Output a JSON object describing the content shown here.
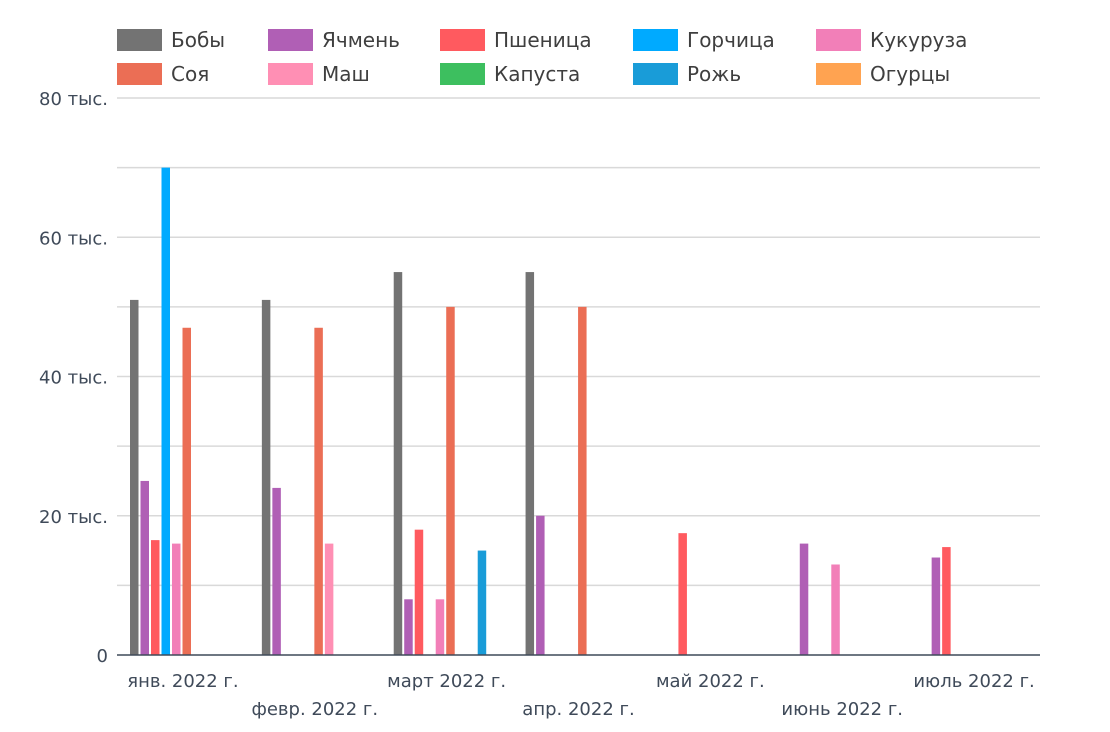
{
  "chart_data": {
    "type": "bar",
    "categories": [
      "янв. 2022 г.",
      "февр. 2022 г.",
      "март 2022 г.",
      "апр. 2022 г.",
      "май 2022 г.",
      "июнь 2022 г.",
      "июль 2022 г."
    ],
    "series": [
      {
        "name": "Бобы",
        "color": "#737373",
        "values": [
          51000,
          51000,
          55000,
          55000,
          0,
          0,
          0
        ]
      },
      {
        "name": "Ячмень",
        "color": "#b05fb5",
        "values": [
          25000,
          24000,
          8000,
          20000,
          0,
          16000,
          14000
        ]
      },
      {
        "name": "Пшеница",
        "color": "#ff5a5f",
        "values": [
          16500,
          0,
          18000,
          0,
          17500,
          0,
          15500
        ]
      },
      {
        "name": "Горчица",
        "color": "#00aaff",
        "values": [
          70000,
          0,
          0,
          0,
          0,
          0,
          0
        ]
      },
      {
        "name": "Кукуруза",
        "color": "#f27fb8",
        "values": [
          16000,
          0,
          8000,
          0,
          0,
          13000,
          0
        ]
      },
      {
        "name": "Соя",
        "color": "#eb6e55",
        "values": [
          47000,
          47000,
          50000,
          50000,
          0,
          0,
          0
        ]
      },
      {
        "name": "Маш",
        "color": "#ff8fb4",
        "values": [
          0,
          16000,
          0,
          0,
          0,
          0,
          0
        ]
      },
      {
        "name": "Капуста",
        "color": "#3dbf5f",
        "values": [
          0,
          0,
          0,
          0,
          0,
          0,
          0
        ]
      },
      {
        "name": "Рожь",
        "color": "#199cd8",
        "values": [
          0,
          0,
          15000,
          0,
          0,
          0,
          0
        ]
      },
      {
        "name": "Огурцы",
        "color": "#ffa351",
        "values": [
          0,
          0,
          0,
          0,
          0,
          0,
          0
        ]
      }
    ],
    "ylim": [
      0,
      80000
    ],
    "y_ticks": [
      0,
      20000,
      40000,
      60000,
      80000
    ],
    "y_tick_labels": [
      "0",
      "20 тыс.",
      "40 тыс.",
      "60 тыс.",
      "80 тыс."
    ],
    "grid": true,
    "legend_position": "top-left"
  }
}
